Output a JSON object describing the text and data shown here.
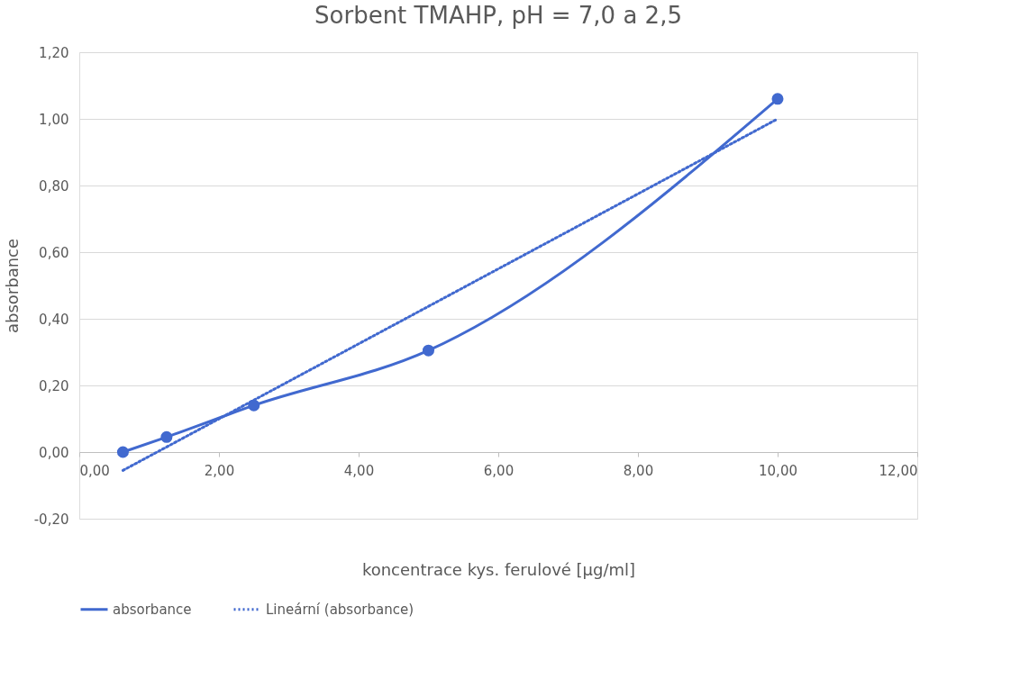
{
  "chart_data": {
    "type": "line",
    "title": "Sorbent TMAHP, pH = 7,0 a 2,5",
    "xlabel": "koncentrace kys. ferulové [µg/ml]",
    "ylabel": "absorbance",
    "xlim": [
      0,
      12
    ],
    "ylim": [
      -0.2,
      1.2
    ],
    "xticks": [
      {
        "value": 0,
        "label": "0,00"
      },
      {
        "value": 2,
        "label": "2,00"
      },
      {
        "value": 4,
        "label": "4,00"
      },
      {
        "value": 6,
        "label": "6,00"
      },
      {
        "value": 8,
        "label": "8,00"
      },
      {
        "value": 10,
        "label": "10,00"
      },
      {
        "value": 12,
        "label": "12,00"
      }
    ],
    "yticks": [
      {
        "value": -0.2,
        "label": "-0,20"
      },
      {
        "value": 0,
        "label": "0,00"
      },
      {
        "value": 0.2,
        "label": "0,20"
      },
      {
        "value": 0.4,
        "label": "0,40"
      },
      {
        "value": 0.6,
        "label": "0,60"
      },
      {
        "value": 0.8,
        "label": "0,80"
      },
      {
        "value": 1.0,
        "label": "1,00"
      },
      {
        "value": 1.2,
        "label": "1,20"
      }
    ],
    "grid": "y",
    "legend": "bottom",
    "series": [
      {
        "name": "absorbance",
        "color": "#4169cf",
        "x": [
          0.625,
          1.25,
          2.5,
          5,
          10
        ],
        "values": [
          0.0,
          0.045,
          0.14,
          0.305,
          1.06
        ],
        "marker": "circle",
        "line_style": "solid"
      },
      {
        "name": "Lineární (absorbance)",
        "color": "#4169cf",
        "x": [
          0.625,
          10
        ],
        "values": [
          -0.055,
          1.0
        ],
        "marker": "none",
        "line_style": "dotted"
      }
    ]
  }
}
